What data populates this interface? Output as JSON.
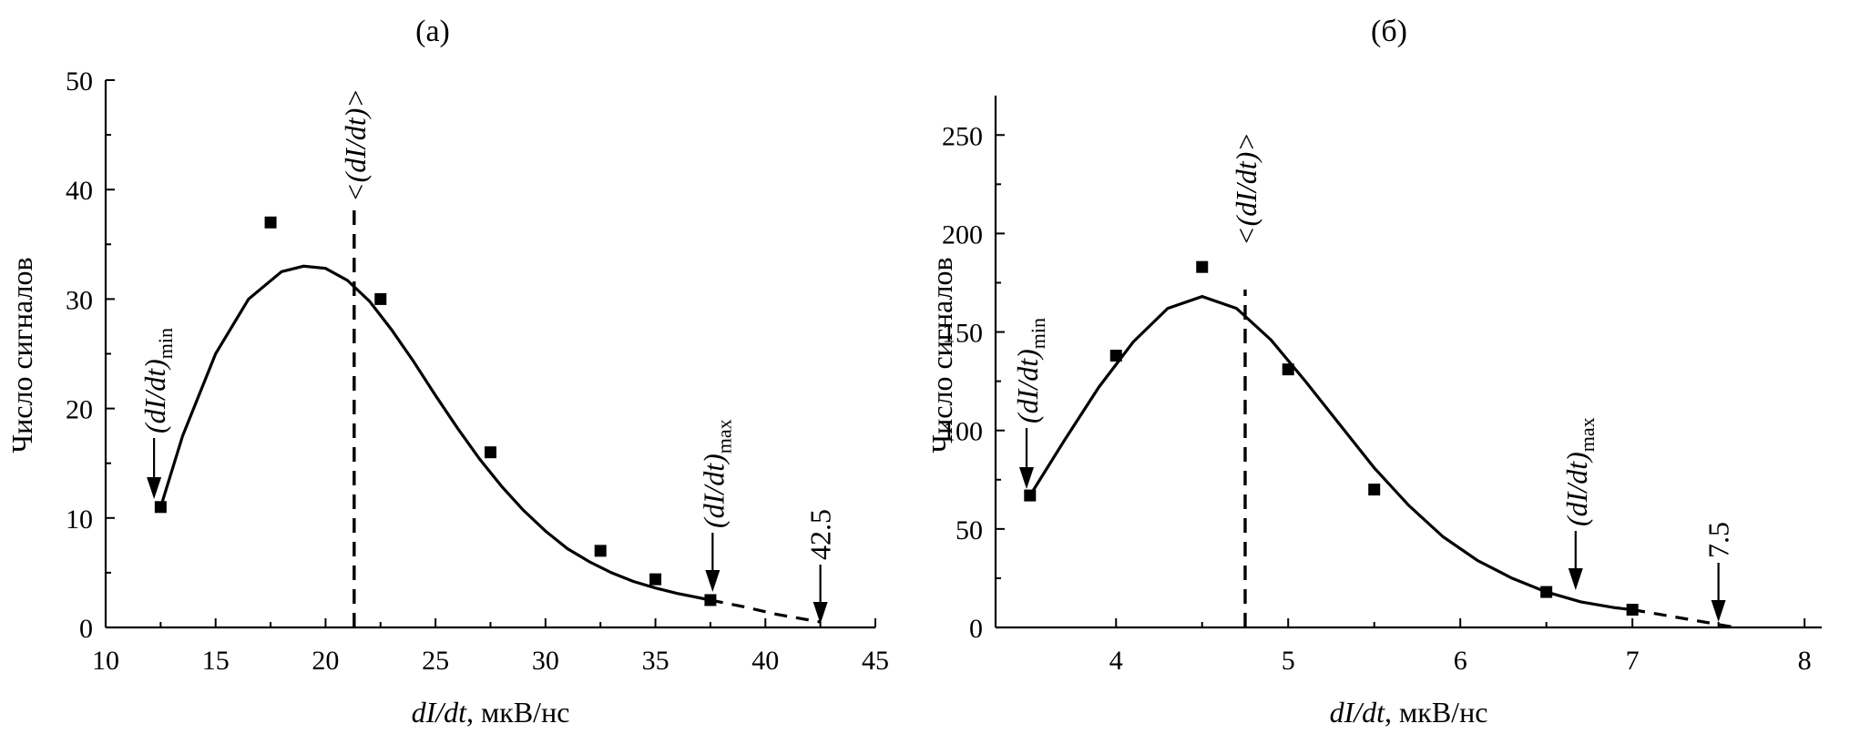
{
  "chart_data": [
    {
      "type": "scatter",
      "panel_label": "(а)",
      "xlabel_var": "dI/dt",
      "xlabel_unit": ", мкВ/нс",
      "ylabel": "Число сигналов",
      "xlim": [
        10,
        45
      ],
      "ylim": [
        0,
        50
      ],
      "xticks": [
        10,
        15,
        20,
        25,
        30,
        35,
        40,
        45
      ],
      "yticks": [
        0,
        10,
        20,
        30,
        40,
        50
      ],
      "points": [
        {
          "x": 12.5,
          "y": 11
        },
        {
          "x": 17.5,
          "y": 37
        },
        {
          "x": 22.5,
          "y": 30
        },
        {
          "x": 27.5,
          "y": 16
        },
        {
          "x": 32.5,
          "y": 7
        },
        {
          "x": 35,
          "y": 4.4
        },
        {
          "x": 37.5,
          "y": 2.5
        }
      ],
      "fit_curve": [
        [
          12.5,
          11
        ],
        [
          13.5,
          17.5
        ],
        [
          15,
          25
        ],
        [
          16.5,
          30
        ],
        [
          18,
          32.5
        ],
        [
          19,
          33
        ],
        [
          20,
          32.8
        ],
        [
          21,
          31.7
        ],
        [
          22,
          29.8
        ],
        [
          23,
          27.2
        ],
        [
          24,
          24.3
        ],
        [
          25,
          21.2
        ],
        [
          26,
          18.2
        ],
        [
          27,
          15.4
        ],
        [
          28,
          12.9
        ],
        [
          29,
          10.7
        ],
        [
          30,
          8.8
        ],
        [
          31,
          7.2
        ],
        [
          32,
          6
        ],
        [
          33,
          5
        ],
        [
          34,
          4.2
        ],
        [
          35,
          3.6
        ],
        [
          36,
          3.1
        ],
        [
          37,
          2.7
        ],
        [
          37.5,
          2.5
        ]
      ],
      "extrapolation": [
        [
          37.5,
          2.5
        ],
        [
          39,
          1.9
        ],
        [
          40.5,
          1.2
        ],
        [
          42.5,
          0.5
        ]
      ],
      "mean_line_x": 21.3,
      "mean_label": "<(dI/dt)>",
      "min_marker": {
        "x": 12.2,
        "label": "(dI/dt)",
        "sub": "min"
      },
      "max_marker": {
        "x": 37.6,
        "label": "(dI/dt)",
        "sub": "max"
      },
      "end_marker": {
        "x": 42.5,
        "label": "42.5"
      }
    },
    {
      "type": "scatter",
      "panel_label": "(б)",
      "xlabel_var": "dI/dt",
      "xlabel_unit": ", мкВ/нс",
      "ylabel": "Число сигналов",
      "xlim": [
        3.3,
        8.1
      ],
      "ylim": [
        0,
        270
      ],
      "xticks": [
        4,
        5,
        6,
        7,
        8
      ],
      "yticks": [
        0,
        50,
        100,
        150,
        200,
        250
      ],
      "points": [
        {
          "x": 3.5,
          "y": 67
        },
        {
          "x": 4,
          "y": 138
        },
        {
          "x": 4.5,
          "y": 183
        },
        {
          "x": 5,
          "y": 131
        },
        {
          "x": 5.5,
          "y": 70
        },
        {
          "x": 6.5,
          "y": 18
        },
        {
          "x": 7,
          "y": 9
        }
      ],
      "fit_curve": [
        [
          3.5,
          67
        ],
        [
          3.7,
          95
        ],
        [
          3.9,
          122
        ],
        [
          4.1,
          145
        ],
        [
          4.3,
          162
        ],
        [
          4.5,
          168
        ],
        [
          4.7,
          162
        ],
        [
          4.9,
          146
        ],
        [
          5.1,
          125
        ],
        [
          5.3,
          103
        ],
        [
          5.5,
          81
        ],
        [
          5.7,
          62
        ],
        [
          5.9,
          46
        ],
        [
          6.1,
          34
        ],
        [
          6.3,
          25
        ],
        [
          6.5,
          18
        ],
        [
          6.7,
          13
        ],
        [
          6.9,
          10
        ],
        [
          7,
          9
        ]
      ],
      "extrapolation": [
        [
          7,
          9
        ],
        [
          7.2,
          6
        ],
        [
          7.4,
          3
        ],
        [
          7.6,
          0
        ]
      ],
      "mean_line_x": 4.75,
      "mean_label": "<(dI/dt)>",
      "min_marker": {
        "x": 3.48,
        "label": "(dI/dt)",
        "sub": "min"
      },
      "max_marker": {
        "x": 6.67,
        "label": "(dI/dt)",
        "sub": "max"
      },
      "end_marker": {
        "x": 7.5,
        "label": "7.5"
      }
    }
  ]
}
